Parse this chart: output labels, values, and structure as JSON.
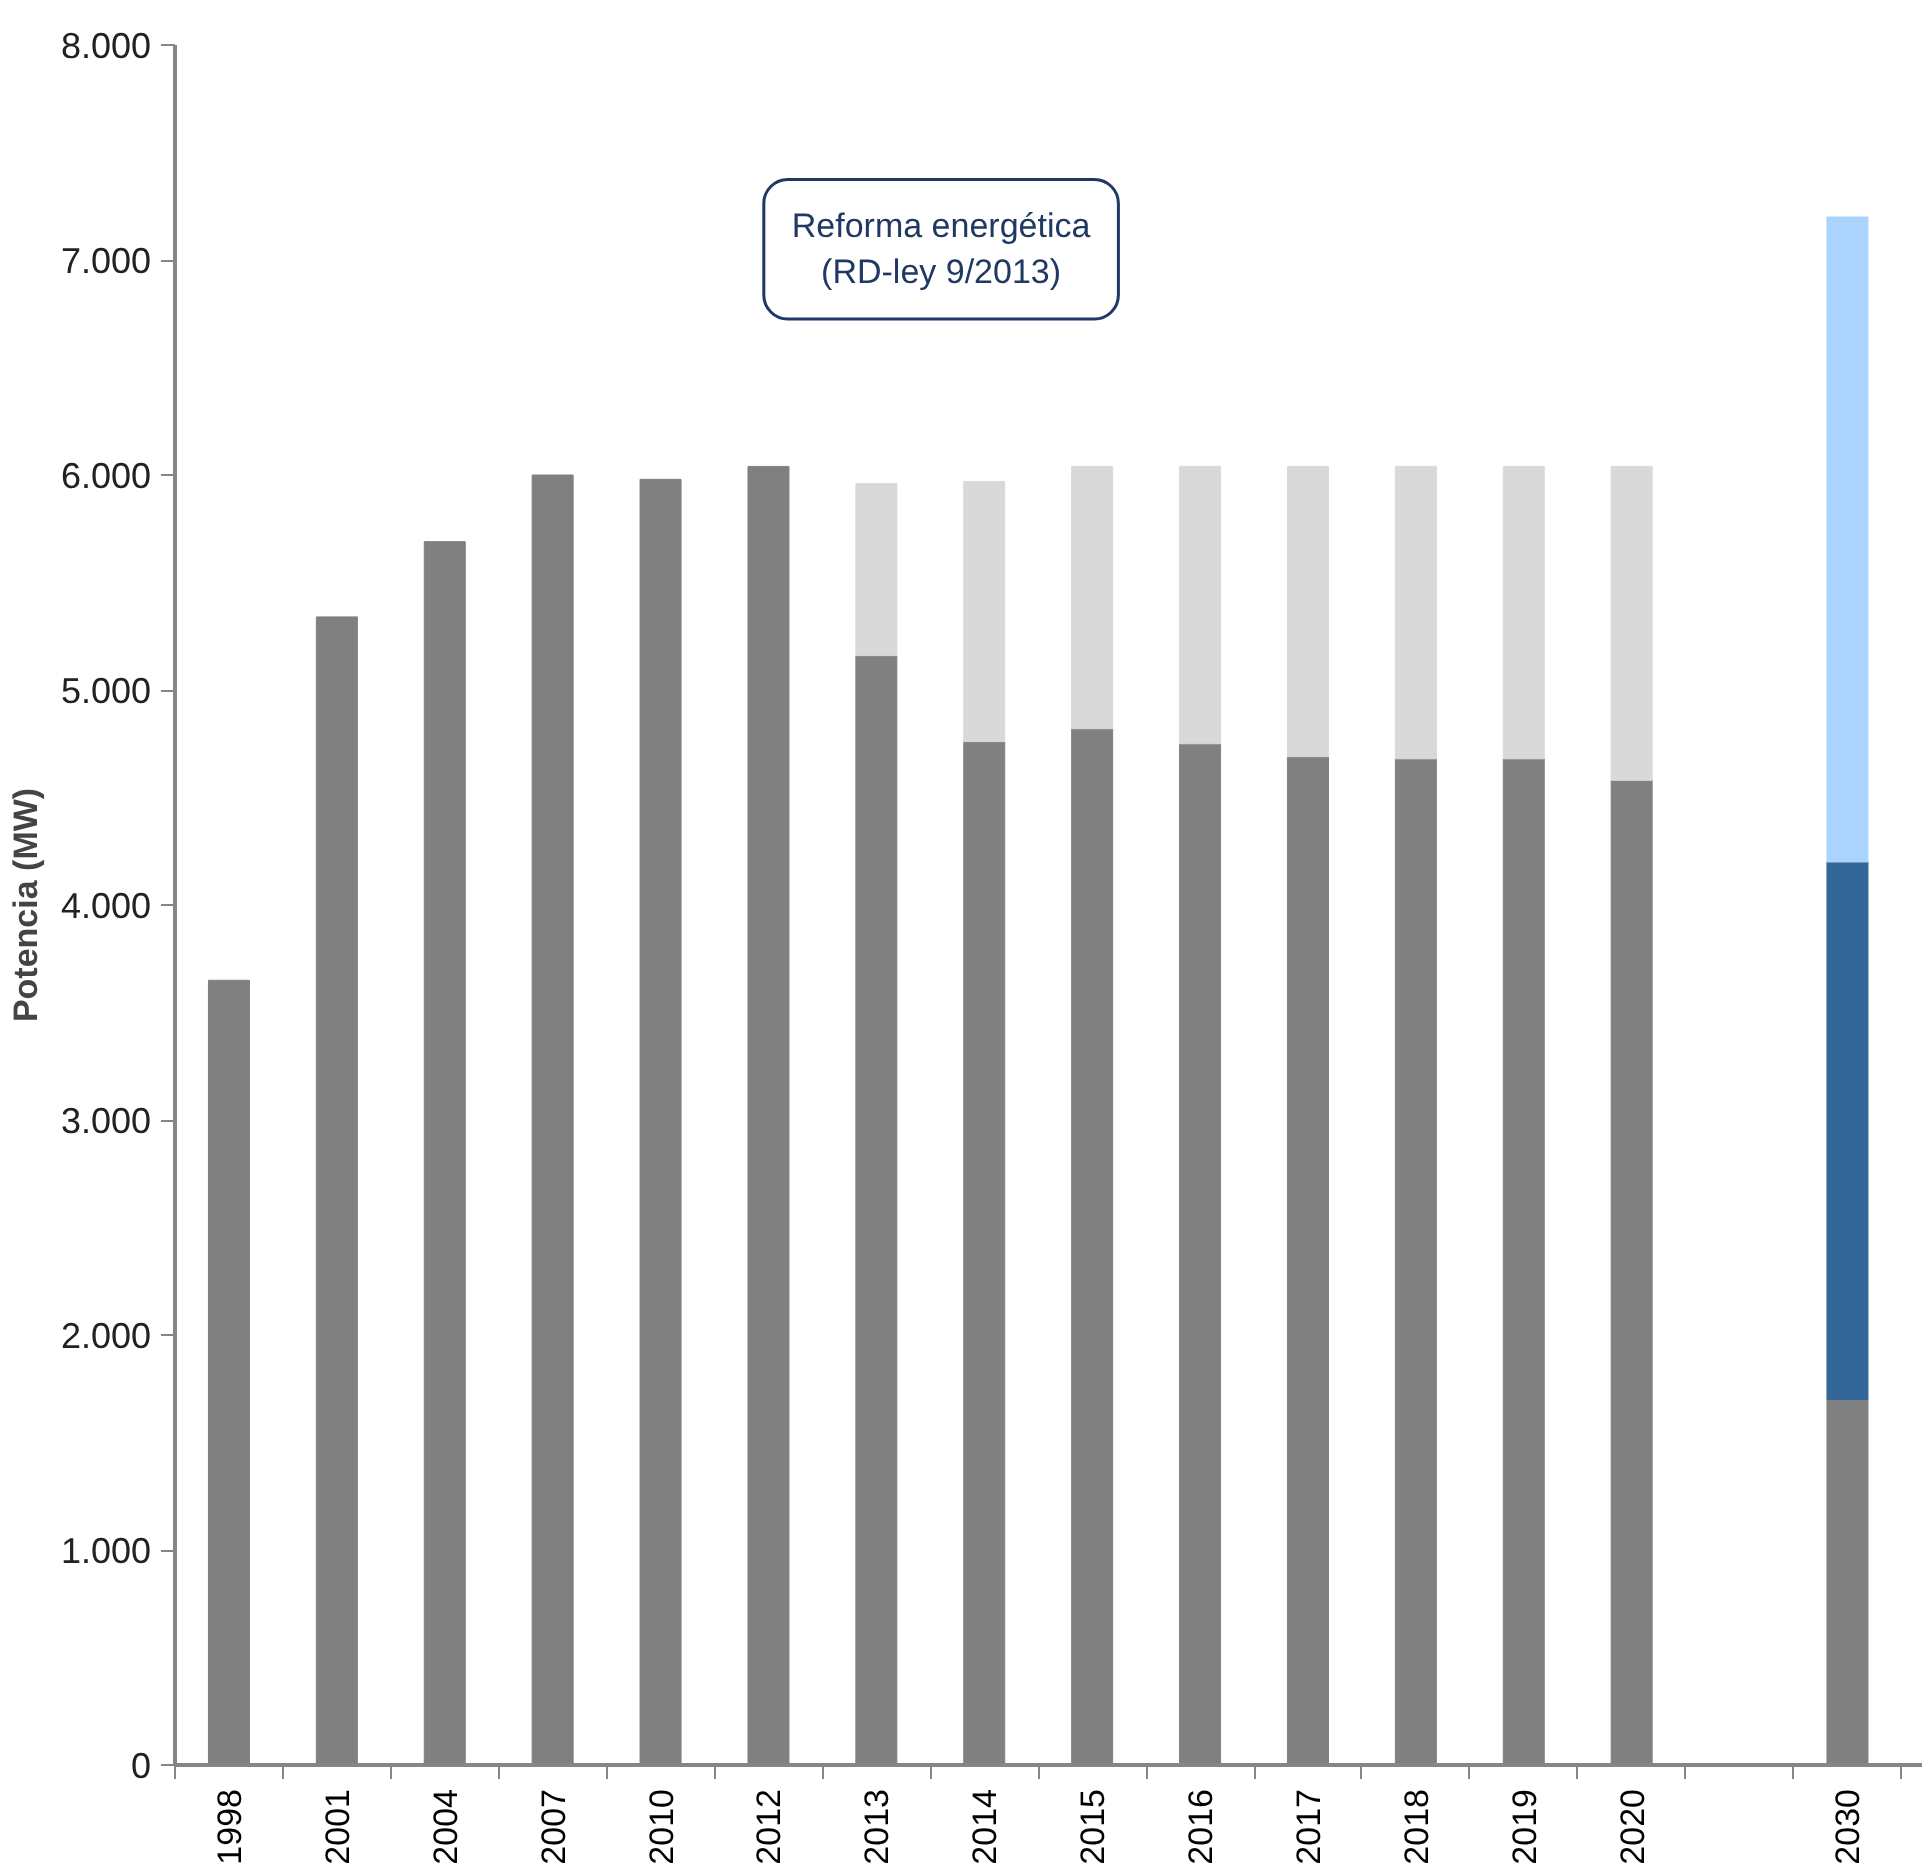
{
  "chart_data": {
    "type": "bar",
    "stacked": true,
    "ylabel": "Potencia (MW)",
    "categories": [
      "1998",
      "2001",
      "2004",
      "2007",
      "2010",
      "2012",
      "2013",
      "2014",
      "2015",
      "2016",
      "2017",
      "2018",
      "2019",
      "2020",
      null,
      "2030"
    ],
    "series": [
      {
        "color": "#808080",
        "values": [
          3650,
          5340,
          5690,
          6000,
          5980,
          6040,
          5160,
          4760,
          4820,
          4750,
          4690,
          4680,
          4680,
          4580,
          null,
          1700
        ]
      },
      {
        "color": "#d9d9d9",
        "values": [
          null,
          null,
          null,
          null,
          null,
          null,
          800,
          1210,
          1220,
          1290,
          1350,
          1360,
          1360,
          1460,
          null,
          null
        ]
      },
      {
        "color": "#336699",
        "values": [
          null,
          null,
          null,
          null,
          null,
          null,
          null,
          null,
          null,
          null,
          null,
          null,
          null,
          null,
          null,
          2500
        ]
      },
      {
        "color": "#aad4fc",
        "values": [
          null,
          null,
          null,
          null,
          null,
          null,
          null,
          null,
          null,
          null,
          null,
          null,
          null,
          null,
          null,
          3000
        ]
      }
    ],
    "ylim": [
      0,
      8000
    ],
    "yticks": [
      {
        "value": 0,
        "label": "0"
      },
      {
        "value": 1000,
        "label": "1.000"
      },
      {
        "value": 2000,
        "label": "2.000"
      },
      {
        "value": 3000,
        "label": "3.000"
      },
      {
        "value": 4000,
        "label": "4.000"
      },
      {
        "value": 5000,
        "label": "5.000"
      },
      {
        "value": 6000,
        "label": "6.000"
      },
      {
        "value": 7000,
        "label": "7.000"
      },
      {
        "value": 8000,
        "label": "8.000"
      }
    ],
    "grid": false,
    "annotations": [
      "Reforma energética\n(RD-ley 9/2013)"
    ]
  }
}
